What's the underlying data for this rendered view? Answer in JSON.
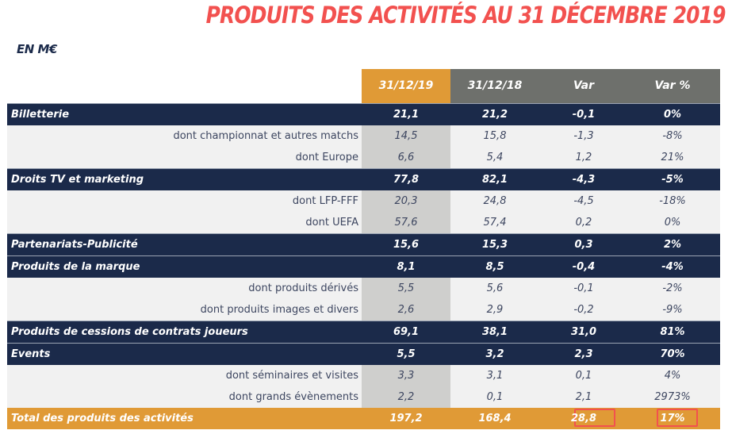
{
  "title": "PRODUITS DES ACTIVITÉS AU 31 DÉCEMBRE 2019",
  "unit_label": "EN M€",
  "colors": {
    "title": "#f2514f",
    "navy": "#1b2a4a",
    "orange": "#e09a36",
    "gray": "#6e706c",
    "highlight": "#f2514f"
  },
  "columns": [
    "31/12/19",
    "31/12/18",
    "Var",
    "Var %"
  ],
  "rows": [
    {
      "type": "cat",
      "label": "Billetterie",
      "values": [
        "21,1",
        "21,2",
        "-0,1",
        "0%"
      ]
    },
    {
      "type": "sub",
      "label": "dont championnat et autres matchs",
      "values": [
        "14,5",
        "15,8",
        "-1,3",
        "-8%"
      ]
    },
    {
      "type": "sub",
      "label": "dont Europe",
      "values": [
        "6,6",
        "5,4",
        "1,2",
        "21%"
      ]
    },
    {
      "type": "cat",
      "label": "Droits TV et marketing",
      "values": [
        "77,8",
        "82,1",
        "-4,3",
        "-5%"
      ]
    },
    {
      "type": "sub",
      "label": "dont LFP-FFF",
      "values": [
        "20,3",
        "24,8",
        "-4,5",
        "-18%"
      ]
    },
    {
      "type": "sub",
      "label": "dont UEFA",
      "values": [
        "57,6",
        "57,4",
        "0,2",
        "0%"
      ]
    },
    {
      "type": "cat",
      "label": "Partenariats-Publicité",
      "values": [
        "15,6",
        "15,3",
        "0,3",
        "2%"
      ]
    },
    {
      "type": "cat",
      "label": "Produits de la marque",
      "values": [
        "8,1",
        "8,5",
        "-0,4",
        "-4%"
      ]
    },
    {
      "type": "sub",
      "label": "dont produits dérivés",
      "values": [
        "5,5",
        "5,6",
        "-0,1",
        "-2%"
      ]
    },
    {
      "type": "sub",
      "label": "dont produits images et divers",
      "values": [
        "2,6",
        "2,9",
        "-0,2",
        "-9%"
      ]
    },
    {
      "type": "cat",
      "label": "Produits de cessions de contrats joueurs",
      "values": [
        "69,1",
        "38,1",
        "31,0",
        "81%"
      ]
    },
    {
      "type": "cat",
      "label": "Events",
      "values": [
        "5,5",
        "3,2",
        "2,3",
        "70%"
      ]
    },
    {
      "type": "sub",
      "label": "dont séminaires et visites",
      "values": [
        "3,3",
        "3,1",
        "0,1",
        "4%"
      ]
    },
    {
      "type": "sub",
      "label": "dont grands évènements",
      "values": [
        "2,2",
        "0,1",
        "2,1",
        "2973%"
      ]
    }
  ],
  "total": {
    "label": "Total des produits des activités",
    "values": [
      "197,2",
      "168,4",
      "28,8",
      "17%"
    ],
    "highlighted": [
      "Var",
      "Var %"
    ]
  }
}
